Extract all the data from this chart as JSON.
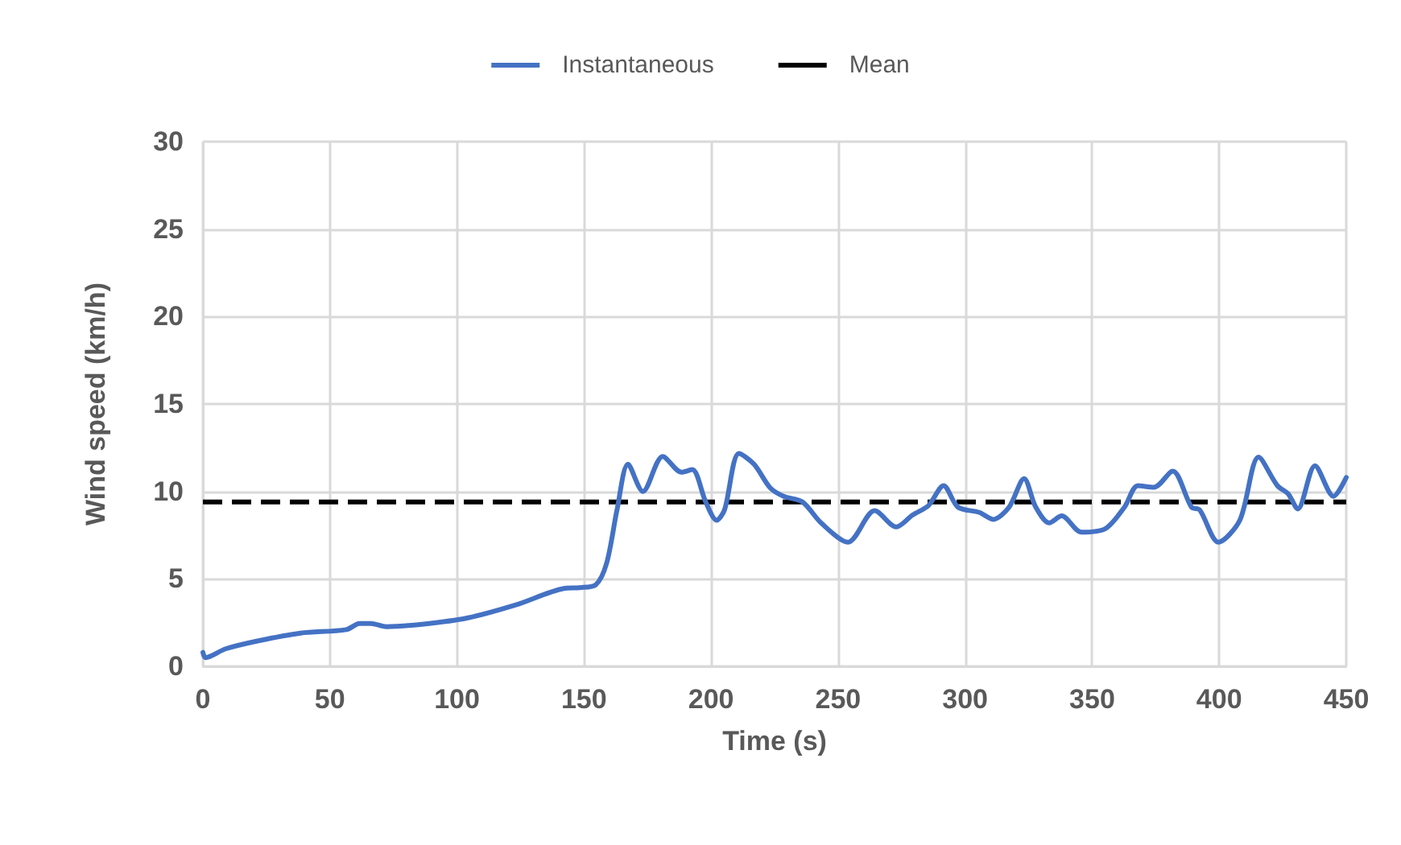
{
  "chart_data": {
    "type": "line",
    "xlabel": "Time (s)",
    "ylabel": "Wind speed (km/h)",
    "xlim": [
      0,
      450
    ],
    "xticks": [
      0,
      50,
      100,
      150,
      200,
      250,
      300,
      350,
      400,
      450
    ],
    "ylim": [
      0,
      30
    ],
    "yticks": [
      0,
      5,
      10,
      15,
      20,
      25,
      30
    ],
    "grid": true,
    "legend": "top",
    "marker": "none",
    "line_style": "solid",
    "series": [
      {
        "name": "Instantaneous",
        "color": "#4472c4",
        "x": [
          0,
          1,
          8.9,
          21.5,
          38.4,
          56.4,
          61.7,
          66,
          72.2,
          87,
          103.9,
          122.9,
          142,
          148.3,
          154.6,
          158.9,
          163,
          167.3,
          173.2,
          181,
          188.4,
          192.6,
          197.9,
          202.2,
          205.3,
          211,
          216.9,
          223.3,
          228.6,
          236,
          243.3,
          253.9,
          264.4,
          272.9,
          279.3,
          285.6,
          291.5,
          297.2,
          305.6,
          311,
          317.3,
          323.2,
          327.8,
          333.1,
          338,
          345.8,
          355.3,
          362.7,
          368,
          374.3,
          381.7,
          389.1,
          392.3,
          399.7,
          408.1,
          415.5,
          422.9,
          427.1,
          430.9,
          437.7,
          445,
          450
        ],
        "values": [
          0.8,
          0.5,
          1.0,
          1.45,
          1.9,
          2.1,
          2.45,
          2.45,
          2.27,
          2.42,
          2.76,
          3.5,
          4.45,
          4.5,
          4.66,
          5.9,
          8.95,
          11.56,
          10.0,
          12.0,
          11.1,
          11.25,
          9.4,
          8.35,
          8.95,
          12.17,
          11.56,
          10.2,
          9.72,
          9.4,
          8.2,
          7.1,
          8.9,
          7.97,
          8.65,
          9.2,
          10.33,
          9.1,
          8.8,
          8.4,
          9.1,
          10.73,
          9.1,
          8.2,
          8.6,
          7.67,
          7.88,
          9.1,
          10.33,
          10.24,
          11.16,
          9.1,
          8.95,
          7.1,
          8.35,
          11.96,
          10.33,
          9.87,
          9.0,
          11.47,
          9.72,
          10.8
        ]
      }
    ],
    "ref_lines": [
      {
        "axis": "y",
        "value": 9.4,
        "label": "Mean",
        "color": "#000000",
        "line_style": "dashed"
      }
    ]
  }
}
